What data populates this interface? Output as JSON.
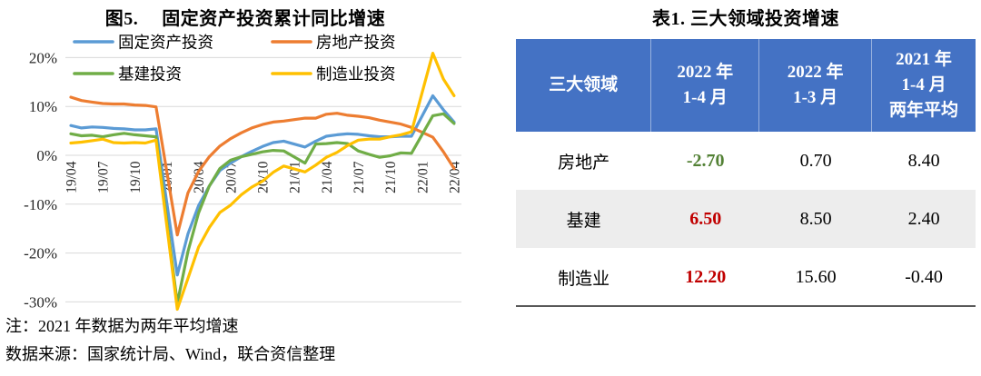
{
  "figure": {
    "title_prefix": "图5.",
    "title": "固定资产投资累计同比增速",
    "note": "注：2021 年数据为两年平均增速",
    "source": "数据来源：国家统计局、Wind，联合资信整理"
  },
  "chart_data": {
    "type": "line",
    "title": "固定资产投资累计同比增速",
    "xlabel": "",
    "ylabel": "",
    "y_unit": "%",
    "ylim": [
      -32,
      22
    ],
    "yticks": [
      20,
      10,
      0,
      -10,
      -20,
      -30
    ],
    "grid": true,
    "legend_position": "top-two-columns",
    "x_tick_every": 3,
    "x_tick_labels": [
      "19/04",
      "19/07",
      "19/10",
      "20/01",
      "20/04",
      "20/07",
      "20/10",
      "21/01",
      "21/04",
      "21/07",
      "21/10",
      "22/01",
      "22/04"
    ],
    "categories": [
      "19/04",
      "19/05",
      "19/06",
      "19/07",
      "19/08",
      "19/09",
      "19/10",
      "19/11",
      "19/12",
      "20/01",
      "20/02",
      "20/03",
      "20/04",
      "20/05",
      "20/06",
      "20/07",
      "20/08",
      "20/09",
      "20/10",
      "20/11",
      "20/12",
      "21/01",
      "21/02",
      "21/03",
      "21/04",
      "21/05",
      "21/06",
      "21/07",
      "21/08",
      "21/09",
      "21/10",
      "21/11",
      "21/12",
      "22/01",
      "22/02",
      "22/03",
      "22/04"
    ],
    "null_policy": "January cumulative data not published; lines connect across gaps",
    "series": [
      {
        "name": "固定资产投资",
        "key": "fixed-asset-investment",
        "color": "#5B9BD5",
        "values": [
          6.1,
          5.6,
          5.8,
          5.7,
          5.5,
          5.4,
          5.2,
          5.2,
          5.4,
          null,
          -24.5,
          -16.1,
          -10.3,
          -6.3,
          -3.1,
          -1.6,
          -0.3,
          0.8,
          1.8,
          2.6,
          2.9,
          null,
          1.7,
          2.9,
          3.9,
          4.2,
          4.4,
          4.3,
          4.0,
          3.8,
          3.8,
          3.9,
          3.9,
          null,
          12.2,
          9.3,
          6.8
        ]
      },
      {
        "name": "房地产投资",
        "key": "real-estate-investment",
        "color": "#ED7D31",
        "values": [
          11.9,
          11.2,
          10.9,
          10.6,
          10.5,
          10.5,
          10.3,
          10.2,
          9.9,
          null,
          -16.3,
          -7.7,
          -3.3,
          -0.3,
          1.9,
          3.4,
          4.6,
          5.6,
          6.3,
          6.8,
          7.0,
          null,
          7.6,
          7.6,
          8.4,
          8.6,
          8.2,
          8.0,
          7.7,
          7.2,
          6.8,
          6.4,
          5.7,
          null,
          3.7,
          0.7,
          -2.7
        ]
      },
      {
        "name": "基建投资",
        "key": "infrastructure-investment",
        "color": "#70AD47",
        "values": [
          4.4,
          4.0,
          4.1,
          3.8,
          4.2,
          4.5,
          4.2,
          4.0,
          3.8,
          null,
          -30.3,
          -19.7,
          -11.8,
          -6.3,
          -2.7,
          -1.0,
          -0.3,
          0.2,
          0.7,
          1.0,
          0.9,
          null,
          -1.6,
          2.3,
          2.4,
          2.6,
          2.4,
          0.9,
          0.2,
          -0.4,
          -0.1,
          0.5,
          0.4,
          null,
          8.1,
          8.5,
          6.5
        ]
      },
      {
        "name": "制造业投资",
        "key": "manufacturing-investment",
        "color": "#FFC000",
        "values": [
          2.5,
          2.7,
          3.0,
          3.3,
          2.6,
          2.5,
          2.6,
          2.5,
          3.1,
          null,
          -31.5,
          -25.2,
          -18.8,
          -14.8,
          -11.7,
          -10.2,
          -8.1,
          -6.5,
          -5.3,
          -3.5,
          -2.2,
          null,
          -3.4,
          -2.0,
          -0.4,
          0.6,
          2.0,
          3.1,
          3.3,
          3.3,
          3.8,
          4.2,
          4.8,
          null,
          20.9,
          15.6,
          12.2
        ]
      }
    ]
  },
  "table": {
    "title": "表1. 三大领域投资增速",
    "header_bg": "#4472C4",
    "stripe_bg": "#EDEDED",
    "negative_color": "#538135",
    "highlight_color": "#C00000",
    "columns": [
      {
        "key": "sector",
        "lines": [
          "三大领域"
        ]
      },
      {
        "key": "2022-1-4",
        "lines": [
          "2022 年",
          "1-4 月"
        ]
      },
      {
        "key": "2022-1-3",
        "lines": [
          "2022 年",
          "1-3 月"
        ]
      },
      {
        "key": "2021-1-4-avg",
        "lines": [
          "2021 年",
          "1-4 月",
          "两年平均"
        ]
      }
    ],
    "rows": [
      {
        "key": "real-estate",
        "label": "房地产",
        "shaded": false,
        "values": [
          {
            "text": "-2.70",
            "color": "#538135",
            "bold": true
          },
          {
            "text": "0.70"
          },
          {
            "text": "8.40"
          }
        ]
      },
      {
        "key": "infrastructure",
        "label": "基建",
        "shaded": true,
        "values": [
          {
            "text": "6.50",
            "color": "#C00000",
            "bold": true
          },
          {
            "text": "8.50"
          },
          {
            "text": "2.40"
          }
        ]
      },
      {
        "key": "manufacturing",
        "label": "制造业",
        "shaded": false,
        "values": [
          {
            "text": "12.20",
            "color": "#C00000",
            "bold": true
          },
          {
            "text": "15.60"
          },
          {
            "text": "-0.40"
          }
        ]
      }
    ]
  }
}
